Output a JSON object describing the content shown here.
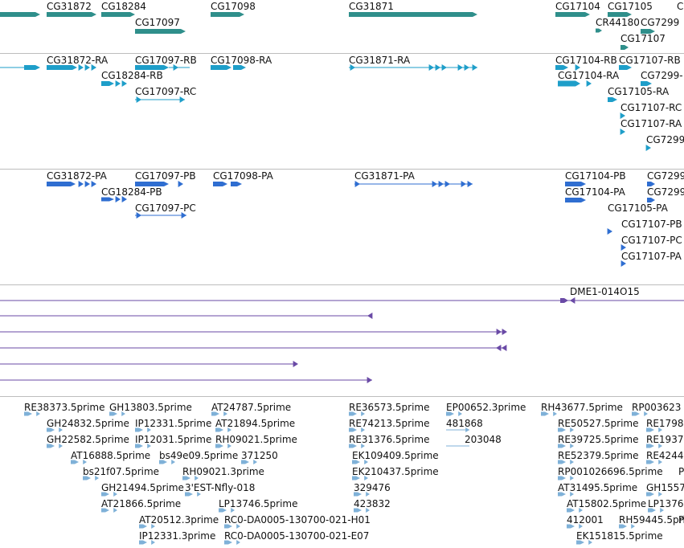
{
  "colors": {
    "gene": "#2f8f8b",
    "transcript": "#1e9ec9",
    "protein": "#2f6ed1",
    "alignment": "#6a4aa6",
    "est": "#7fb1d8",
    "divider": "#bdbdbd"
  },
  "tracks": {
    "genes": {
      "labels": {
        "CG31872": "CG31872",
        "CG18284": "CG18284",
        "CG17097": "CG17097",
        "CG17098": "CG17098",
        "CG31871": "CG31871",
        "CG17104": "CG17104",
        "CG17105": "CG17105",
        "CR44180": "CR44180",
        "CG7299": "CG7299",
        "CG17107": "CG17107",
        "C": "C"
      }
    },
    "transcripts": {
      "labels": {
        "CG31872_RA": "CG31872-RA",
        "CG17097_RB": "CG17097-RB",
        "CG17098_RA": "CG17098-RA",
        "CG31871_RA": "CG31871-RA",
        "CG17104_RB": "CG17104-RB",
        "CG17107_RB": "CG17107-RB",
        "CG18284_RB": "CG18284-RB",
        "CG17104_RA": "CG17104-RA",
        "CG7299_x": "CG7299-",
        "CG17097_RC": "CG17097-RC",
        "CG17105_RA": "CG17105-RA",
        "CG17107_RC": "CG17107-RC",
        "CG17107_RA": "CG17107-RA",
        "CG7299_trunc": "CG7299"
      }
    },
    "proteins": {
      "labels": {
        "CG31872_PA": "CG31872-PA",
        "CG17097_PB": "CG17097-PB",
        "CG17098_PA": "CG17098-PA",
        "CG31871_PA": "CG31871-PA",
        "CG17104_PB": "CG17104-PB",
        "CG7299_a": "CG7299",
        "CG18284_PB": "CG18284-PB",
        "CG17104_PA": "CG17104-PA",
        "CG7299_b": "CG7299",
        "CG17097_PC": "CG17097-PC",
        "CG17105_PA": "CG17105-PA",
        "CG17107_PB": "CG17107-PB",
        "CG17107_PC": "CG17107-PC",
        "CG17107_PA": "CG17107-PA"
      }
    },
    "alignments": {
      "labels": {
        "DME1_014O15": "DME1-014O15"
      }
    },
    "ests": {
      "labels": {
        "RE38373": "RE38373.5prime",
        "GH13803": "GH13803.5prime",
        "AT24787": "AT24787.5prime",
        "RE36573": "RE36573.5prime",
        "EP00652": "EP00652.3prime",
        "RH43677": "RH43677.5prime",
        "RP003623": "RP003623",
        "GH24832": "GH24832.5prime",
        "IP12331a": "IP12331.5prime",
        "AT21894": "AT21894.5prime",
        "RE74213": "RE74213.5prime",
        "n481868": "481868",
        "RE50527": "RE50527.5prime",
        "RE1798": "RE1798",
        "GH22582": "GH22582.5prime",
        "IP12031": "IP12031.5prime",
        "RH09021a": "RH09021.5prime",
        "RE31376": "RE31376.5prime",
        "n203048": "203048",
        "RE39725": "RE39725.5prime",
        "RE1937": "RE1937",
        "AT16888": "AT16888.5prime",
        "bs49e09": "bs49e09.5prime",
        "n371250": "371250",
        "EK109409": "EK109409.5prime",
        "RE52379": "RE52379.5prime",
        "RE4244": "RE4244",
        "bs21f07": "bs21f07.5prime",
        "RH09021b": "RH09021.3prime",
        "EK210437": "EK210437.5prime",
        "RP001026696": "RP001026696.5prime",
        "P1": "P",
        "GH21494": "GH21494.5prime",
        "EST_Nfly": "3'EST-Nfly-018",
        "n329476": "329476",
        "AT31495": "AT31495.5prime",
        "GH1557": "GH1557",
        "AT21866": "AT21866.5prime",
        "LP13746a": "LP13746.5prime",
        "n423832": "423832",
        "AT15802": "AT15802.5prime",
        "LP1376": "LP1376",
        "AT20512": "AT20512.3prime",
        "RC0_H01": "RC0-DA0005-130700-021-H01",
        "n412001": "412001",
        "RH59445": "RH59445.5pri",
        "P2": "P",
        "IP12331b": "IP12331.3prime",
        "RC0_E07": "RC0-DA0005-130700-021-E07",
        "EK151815": "EK151815.5prime"
      }
    }
  }
}
